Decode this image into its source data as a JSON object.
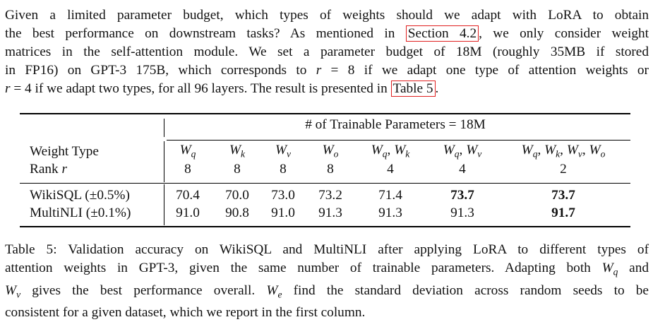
{
  "paragraph": {
    "lines": [
      [
        "Given a limited parameter budget, which types of weights should we adapt with LoRA to obtain"
      ],
      [
        "the best performance on downstream tasks? As mentioned in ",
        "Section 4.2",
        ", we only consider weight"
      ],
      [
        "matrices in the self-attention module. We set a parameter budget of 18M (roughly 35MB if stored"
      ],
      [
        "in FP16) on GPT-3 175B, which corresponds to ",
        "r",
        " = 8 if we adapt one type of attention weights or"
      ],
      [
        "r",
        " = 4 if we adapt two types, for all 96 layers. The result is presented in ",
        "Table 5",
        "."
      ]
    ]
  },
  "table": {
    "group_header": "# of Trainable Parameters = 18M",
    "row_labels": {
      "weight_type": "Weight Type",
      "rank": "Rank r"
    },
    "columns": [
      {
        "weight": "Wq",
        "rank": "8",
        "wikisql": "70.4",
        "multinli": "91.0"
      },
      {
        "weight": "Wk",
        "rank": "8",
        "wikisql": "70.0",
        "multinli": "90.8"
      },
      {
        "weight": "Wv",
        "rank": "8",
        "wikisql": "73.0",
        "multinli": "91.0"
      },
      {
        "weight": "Wo",
        "rank": "8",
        "wikisql": "73.2",
        "multinli": "91.3"
      },
      {
        "weight": "Wq, Wk",
        "rank": "4",
        "wikisql": "71.4",
        "multinli": "91.3"
      },
      {
        "weight": "Wq, Wv",
        "rank": "4",
        "wikisql": "73.7",
        "multinli": "91.3"
      },
      {
        "weight": "Wq, Wk, Wv, Wo",
        "rank": "2",
        "wikisql": "73.7",
        "multinli": "91.7"
      }
    ],
    "datasets": {
      "wikisql": "WikiSQL (±0.5%)",
      "multinli": "MultiNLI (±0.1%)"
    },
    "bold_cells": [
      "wikisql:5",
      "wikisql:6",
      "multinli:6"
    ]
  },
  "caption": {
    "lines": [
      "Table 5: Validation accuracy on WikiSQL and MultiNLI after applying LoRA to different types of",
      "attention weights in GPT-3, given the same number of trainable parameters. Adapting both Wq and",
      "Wv gives the best performance overall. We find the standard deviation across random seeds to be",
      "consistent for a given dataset, which we report in the first column."
    ]
  }
}
